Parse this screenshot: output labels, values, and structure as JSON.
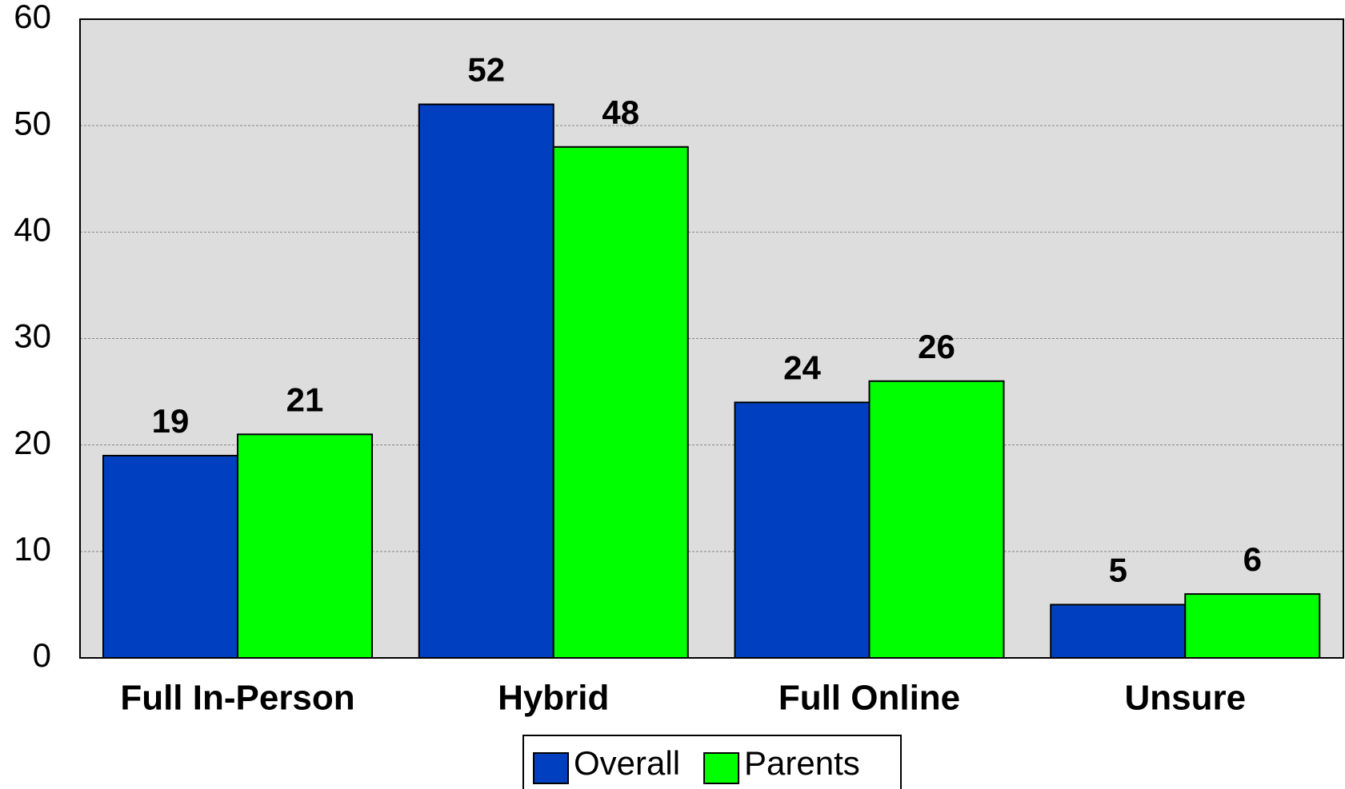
{
  "chart_data": {
    "type": "bar",
    "categories": [
      "Full In-Person",
      "Hybrid",
      "Full Online",
      "Unsure"
    ],
    "series": [
      {
        "name": "Overall",
        "color": "#0040c0",
        "values": [
          19,
          52,
          24,
          5
        ]
      },
      {
        "name": "Parents",
        "color": "#00ff00",
        "values": [
          21,
          48,
          26,
          6
        ]
      }
    ],
    "ylim": [
      0,
      60
    ],
    "yticks": [
      0,
      10,
      20,
      30,
      40,
      50,
      60
    ],
    "grid": true,
    "legend": "bottom"
  }
}
